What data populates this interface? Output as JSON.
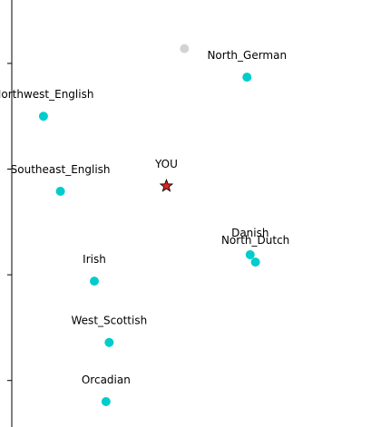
{
  "chart_data": {
    "type": "scatter",
    "xlim": [
      -0.11,
      3.39
    ],
    "ylim": [
      -0.44,
      3.6
    ],
    "ytick_marks": [
      0,
      1,
      2,
      3
    ],
    "series": [
      {
        "color": "#00cccc",
        "marker": "circle",
        "x": [
          2.22,
          0.3,
          0.46,
          2.25,
          2.3,
          0.78,
          0.92,
          0.89
        ],
        "y": [
          2.87,
          2.5,
          1.79,
          1.19,
          1.12,
          0.94,
          0.36,
          -0.2
        ],
        "labels": [
          "North_German",
          "Northwest_English",
          "Southeast_English",
          "Danish",
          "North_Dutch",
          "Irish",
          "West_Scottish",
          "Orcadian"
        ]
      },
      {
        "color": "#d62728",
        "marker": "star",
        "x": [
          1.46
        ],
        "y": [
          1.84
        ],
        "labels": [
          "YOU"
        ]
      },
      {
        "color": "#d3d3d3",
        "marker": "circle",
        "x": [
          1.63
        ],
        "y": [
          3.14
        ]
      }
    ]
  }
}
